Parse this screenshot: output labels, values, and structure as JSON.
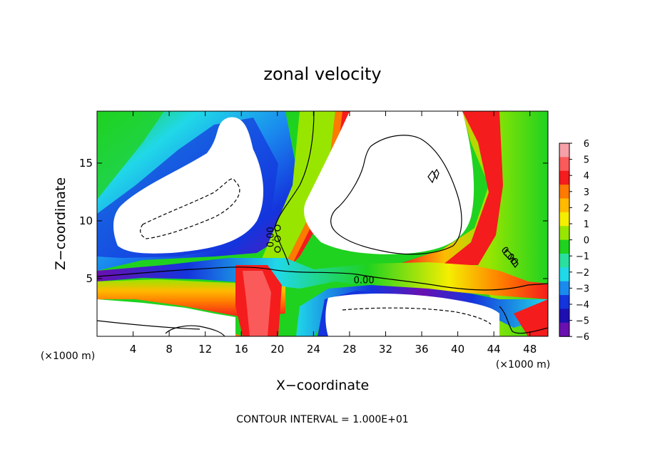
{
  "chart_data": {
    "type": "heatmap",
    "title": "zonal velocity",
    "xlabel": "X−coordinate",
    "ylabel": "Z−coordinate",
    "x_unit_left": "(×1000 m)",
    "x_unit_right": "(×1000 m)",
    "footer": "CONTOUR INTERVAL = 1.000E+01",
    "xlim": [
      0,
      50
    ],
    "ylim": [
      0,
      19.5
    ],
    "x_ticks": [
      4,
      8,
      12,
      16,
      20,
      24,
      28,
      32,
      36,
      40,
      44,
      48
    ],
    "y_ticks": [
      5,
      10,
      15
    ],
    "colorbar": {
      "levels": [
        6,
        5,
        4,
        3,
        2,
        1,
        0,
        -1,
        -2,
        -3,
        -4,
        -5,
        -6
      ],
      "labels": [
        "6",
        "5",
        "4",
        "3",
        "2",
        "1",
        "0",
        "−1",
        "−2",
        "−3",
        "−4",
        "−5",
        "−6"
      ],
      "colors": [
        "#f6a0a8",
        "#fb5a5a",
        "#f41c1c",
        "#ff7a00",
        "#ffba00",
        "#f5ee00",
        "#98e600",
        "#1fd21f",
        "#2ae0a0",
        "#20d8e8",
        "#1a8aee",
        "#1434dd",
        "#1e0fb0",
        "#6a10b0"
      ]
    },
    "contour_labels": [
      {
        "text": "0.00",
        "x": 19.6,
        "y": 8.6,
        "rotate": -90
      },
      {
        "text": "0.00",
        "x": 29.6,
        "y": 4.6,
        "rotate": 0
      },
      {
        "text": "0.00",
        "x": 45.5,
        "y": 6.8,
        "rotate": 50
      }
    ]
  }
}
